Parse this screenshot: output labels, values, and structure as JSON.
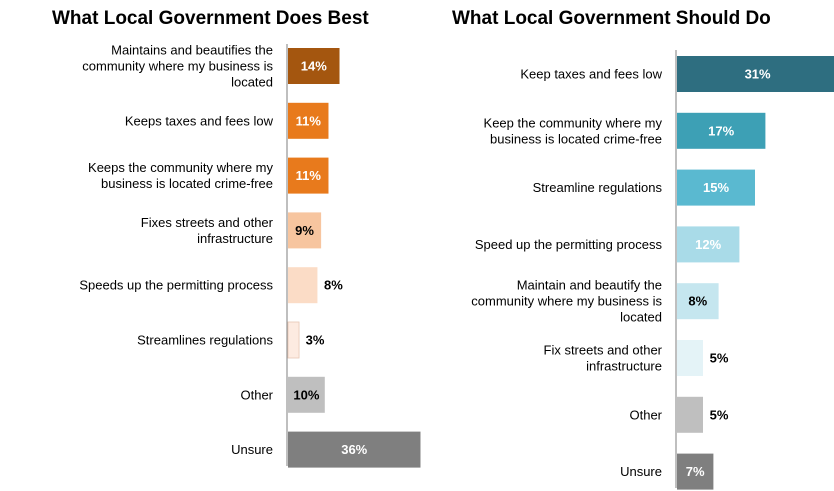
{
  "chart_data": [
    {
      "type": "bar",
      "orientation": "horizontal",
      "title": "What Local Government Does Best",
      "categories": [
        "Maintains and beautifies the community where my business is located",
        "Keeps taxes and fees low",
        "Keeps the community where my business is located crime-free",
        "Fixes streets and other infrastructure",
        "Speeds up the permitting process",
        "Streamlines regulations",
        "Other",
        "Unsure"
      ],
      "values": [
        14,
        11,
        11,
        9,
        8,
        3,
        10,
        36
      ],
      "value_labels": [
        "14%",
        "11%",
        "11%",
        "9%",
        "8%",
        "3%",
        "10%",
        "36%"
      ],
      "colors": [
        "#a4560f",
        "#e87a1c",
        "#e87a1c",
        "#f7c59f",
        "#fbdcc6",
        "#fdebe1",
        "#bfbfbf",
        "#7f7f7f"
      ],
      "label_colors": [
        "#ffffff",
        "#ffffff",
        "#ffffff",
        "#000000",
        "#000000",
        "#000000",
        "#000000",
        "#ffffff"
      ]
    },
    {
      "type": "bar",
      "orientation": "horizontal",
      "title": "What Local Government Should Do",
      "categories": [
        "Keep taxes and fees low",
        "Keep the community where my business is located crime-free",
        "Streamline regulations",
        "Speed up the permitting process",
        "Maintain and beautify the community where my business is located",
        "Fix streets and other infrastructure",
        "Other",
        "Unsure"
      ],
      "values": [
        31,
        17,
        15,
        12,
        8,
        5,
        5,
        7
      ],
      "value_labels": [
        "31%",
        "17%",
        "15%",
        "12%",
        "8%",
        "5%",
        "5%",
        "7%"
      ],
      "colors": [
        "#2e6e80",
        "#3da0b5",
        "#5ab9d0",
        "#a9dbe8",
        "#c5e6ef",
        "#e4f3f7",
        "#bfbfbf",
        "#7f7f7f"
      ],
      "label_colors": [
        "#ffffff",
        "#ffffff",
        "#ffffff",
        "#ffffff",
        "#000000",
        "#000000",
        "#000000",
        "#ffffff"
      ]
    }
  ]
}
